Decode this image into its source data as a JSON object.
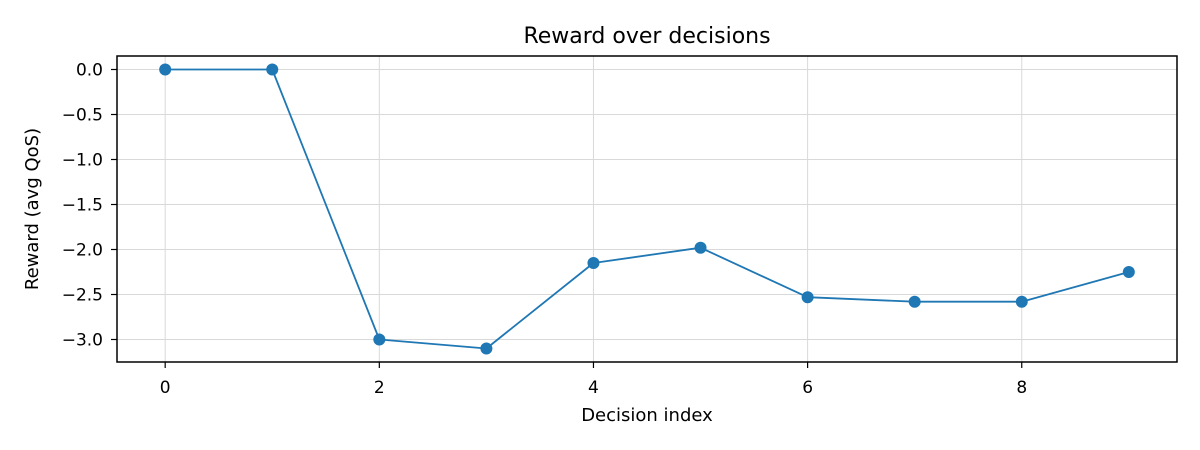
{
  "chart_data": {
    "type": "line",
    "title": "Reward over decisions",
    "xlabel": "Decision index",
    "ylabel": "Reward (avg QoS)",
    "x": [
      0,
      1,
      2,
      3,
      4,
      5,
      6,
      7,
      8,
      9
    ],
    "series": [
      {
        "values": [
          0.0,
          0.0,
          -3.0,
          -3.1,
          -2.15,
          -1.98,
          -2.53,
          -2.58,
          -2.58,
          -2.25
        ],
        "color": "#1f77b4"
      }
    ],
    "xlim": [
      -0.45,
      9.45
    ],
    "ylim": [
      -3.25,
      0.15
    ],
    "xticks": [
      0,
      2,
      4,
      6,
      8
    ],
    "xtick_labels": [
      "0",
      "2",
      "4",
      "6",
      "8"
    ],
    "yticks": [
      0.0,
      -0.5,
      -1.0,
      -1.5,
      -2.0,
      -2.5,
      -3.0
    ],
    "ytick_labels": [
      "0.0",
      "−0.5",
      "−1.0",
      "−1.5",
      "−2.0",
      "−2.5",
      "−3.0"
    ],
    "grid": true,
    "grid_color": "#d9d9d9",
    "marker": "circle",
    "legend": false
  }
}
